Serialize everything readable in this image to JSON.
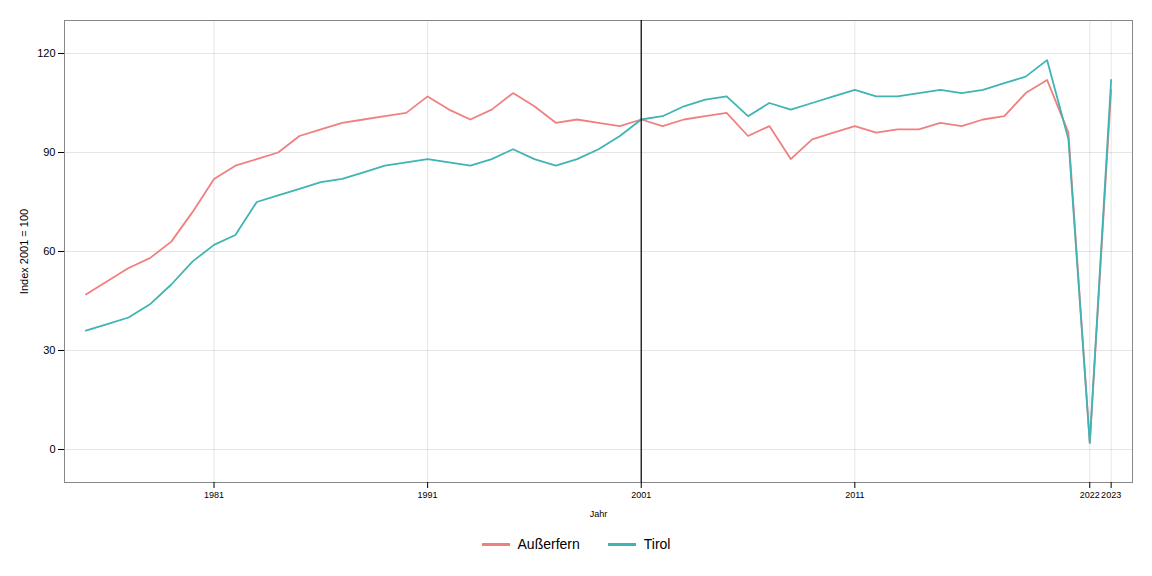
{
  "chart_data": {
    "type": "line",
    "xlabel": "Jahr",
    "ylabel": "Index 2001 = 100",
    "x": [
      1975,
      1976,
      1977,
      1978,
      1979,
      1980,
      1981,
      1982,
      1983,
      1984,
      1985,
      1986,
      1987,
      1988,
      1989,
      1990,
      1991,
      1992,
      1993,
      1994,
      1995,
      1996,
      1997,
      1998,
      1999,
      2000,
      2001,
      2002,
      2003,
      2004,
      2005,
      2006,
      2007,
      2008,
      2009,
      2010,
      2011,
      2012,
      2013,
      2014,
      2015,
      2016,
      2017,
      2018,
      2019,
      2020,
      2021,
      2022,
      2023
    ],
    "series": [
      {
        "name": "Außerfern",
        "color": "#F08080",
        "values": [
          47,
          51,
          55,
          58,
          63,
          72,
          82,
          86,
          88,
          90,
          95,
          97,
          99,
          100,
          101,
          102,
          107,
          103,
          100,
          103,
          108,
          104,
          99,
          100,
          99,
          98,
          100,
          98,
          100,
          101,
          102,
          95,
          98,
          88,
          94,
          96,
          98,
          96,
          97,
          97,
          99,
          98,
          100,
          101,
          108,
          112,
          96,
          2,
          109
        ]
      },
      {
        "name": "Tirol",
        "color": "#40B4B4",
        "values": [
          36,
          38,
          40,
          44,
          50,
          57,
          62,
          65,
          75,
          77,
          79,
          81,
          82,
          84,
          86,
          87,
          88,
          87,
          86,
          88,
          91,
          88,
          86,
          88,
          91,
          95,
          100,
          101,
          104,
          106,
          107,
          101,
          105,
          103,
          105,
          107,
          109,
          107,
          107,
          108,
          109,
          108,
          109,
          111,
          113,
          118,
          94,
          2,
          112
        ]
      }
    ],
    "vline_x": 2001,
    "xlim": [
      1974,
      2024
    ],
    "xticks": [
      1981,
      1991,
      2001,
      2011,
      2022,
      2023
    ],
    "ylim": [
      -10,
      130
    ],
    "yticks": [
      0,
      30,
      60,
      90,
      120
    ],
    "grid": true,
    "legend": "bottom"
  }
}
